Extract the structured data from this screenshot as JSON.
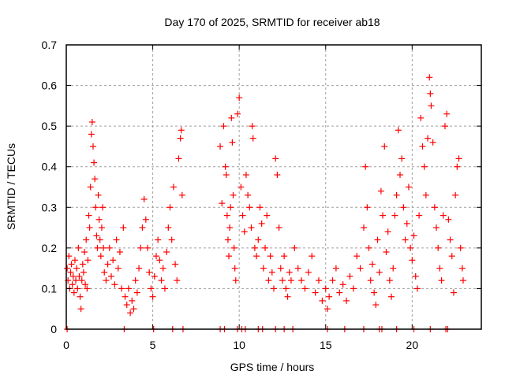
{
  "chart_data": {
    "type": "scatter",
    "title": "Day 170 of 2025, SRMTID for receiver ab18",
    "xlabel": "GPS time / hours",
    "ylabel": "SRMTID / TECUs",
    "xlim": [
      0,
      24
    ],
    "ylim": [
      0,
      0.7
    ],
    "xticks": [
      "0",
      "5",
      "10",
      "15",
      "20"
    ],
    "xtick_values": [
      0,
      5,
      10,
      15,
      20
    ],
    "yticks": [
      "0",
      "0.1",
      "0.2",
      "0.3",
      "0.4",
      "0.5",
      "0.6",
      "0.7"
    ],
    "ytick_values": [
      0,
      0.1,
      0.2,
      0.3,
      0.4,
      0.5,
      0.6,
      0.7
    ],
    "grid": true,
    "marker": "plus",
    "series": [
      {
        "name": "SRMTID",
        "color": "#ff0000",
        "points": [
          [
            0.05,
            0.15
          ],
          [
            0.1,
            0.12
          ],
          [
            0.15,
            0.18
          ],
          [
            0.2,
            0.1
          ],
          [
            0.25,
            0.14
          ],
          [
            0.3,
            0.16
          ],
          [
            0.35,
            0.11
          ],
          [
            0.4,
            0.13
          ],
          [
            0.45,
            0.09
          ],
          [
            0.5,
            0.17
          ],
          [
            0.55,
            0.12
          ],
          [
            0.6,
            0.15
          ],
          [
            0.65,
            0.1
          ],
          [
            0.7,
            0.2
          ],
          [
            0.75,
            0.13
          ],
          [
            0.8,
            0.08
          ],
          [
            0.85,
            0.05
          ],
          [
            0.9,
            0.12
          ],
          [
            0.95,
            0.16
          ],
          [
            1.0,
            0.14
          ],
          [
            1.05,
            0.19
          ],
          [
            1.1,
            0.11
          ],
          [
            1.15,
            0.22
          ],
          [
            1.2,
            0.1
          ],
          [
            1.25,
            0.17
          ],
          [
            1.3,
            0.28
          ],
          [
            1.35,
            0.25
          ],
          [
            1.4,
            0.35
          ],
          [
            1.45,
            0.48
          ],
          [
            1.5,
            0.51
          ],
          [
            1.55,
            0.45
          ],
          [
            1.6,
            0.41
          ],
          [
            1.65,
            0.37
          ],
          [
            1.7,
            0.3
          ],
          [
            1.75,
            0.23
          ],
          [
            1.8,
            0.2
          ],
          [
            1.85,
            0.33
          ],
          [
            1.9,
            0.27
          ],
          [
            1.95,
            0.22
          ],
          [
            2.0,
            0.18
          ],
          [
            2.05,
            0.25
          ],
          [
            2.1,
            0.3
          ],
          [
            2.15,
            0.2
          ],
          [
            2.2,
            0.14
          ],
          [
            2.3,
            0.12
          ],
          [
            2.4,
            0.16
          ],
          [
            2.5,
            0.2
          ],
          [
            2.6,
            0.13
          ],
          [
            2.7,
            0.17
          ],
          [
            2.8,
            0.11
          ],
          [
            2.9,
            0.22
          ],
          [
            3.0,
            0.15
          ],
          [
            3.1,
            0.19
          ],
          [
            3.2,
            0.1
          ],
          [
            3.3,
            0.25
          ],
          [
            3.4,
            0.08
          ],
          [
            3.5,
            0.06
          ],
          [
            3.6,
            0.1
          ],
          [
            3.7,
            0.04
          ],
          [
            3.8,
            0.07
          ],
          [
            3.9,
            0.05
          ],
          [
            4.0,
            0.12
          ],
          [
            4.1,
            0.09
          ],
          [
            4.2,
            0.15
          ],
          [
            4.3,
            0.2
          ],
          [
            4.4,
            0.25
          ],
          [
            4.5,
            0.32
          ],
          [
            4.6,
            0.27
          ],
          [
            4.7,
            0.2
          ],
          [
            4.8,
            0.14
          ],
          [
            4.9,
            0.1
          ],
          [
            5.0,
            0.08
          ],
          [
            5.1,
            0.13
          ],
          [
            5.2,
            0.18
          ],
          [
            5.3,
            0.22
          ],
          [
            5.4,
            0.17
          ],
          [
            5.5,
            0.12
          ],
          [
            5.6,
            0.15
          ],
          [
            5.7,
            0.1
          ],
          [
            5.8,
            0.19
          ],
          [
            5.9,
            0.25
          ],
          [
            6.0,
            0.3
          ],
          [
            6.1,
            0.22
          ],
          [
            6.2,
            0.35
          ],
          [
            6.3,
            0.16
          ],
          [
            6.4,
            0.12
          ],
          [
            6.5,
            0.42
          ],
          [
            6.6,
            0.47
          ],
          [
            6.65,
            0.49
          ],
          [
            6.7,
            0.33
          ],
          [
            8.9,
            0.45
          ],
          [
            9.0,
            0.31
          ],
          [
            9.1,
            0.5
          ],
          [
            9.2,
            0.4
          ],
          [
            9.25,
            0.38
          ],
          [
            9.3,
            0.28
          ],
          [
            9.35,
            0.22
          ],
          [
            9.4,
            0.18
          ],
          [
            9.45,
            0.25
          ],
          [
            9.5,
            0.3
          ],
          [
            9.55,
            0.52
          ],
          [
            9.6,
            0.46
          ],
          [
            9.65,
            0.33
          ],
          [
            9.7,
            0.2
          ],
          [
            9.75,
            0.15
          ],
          [
            9.8,
            0.12
          ],
          [
            9.9,
            0.53
          ],
          [
            10.0,
            0.57
          ],
          [
            10.1,
            0.35
          ],
          [
            10.2,
            0.28
          ],
          [
            10.3,
            0.24
          ],
          [
            10.4,
            0.38
          ],
          [
            10.5,
            0.33
          ],
          [
            10.6,
            0.3
          ],
          [
            10.7,
            0.25
          ],
          [
            10.75,
            0.5
          ],
          [
            10.8,
            0.47
          ],
          [
            10.9,
            0.2
          ],
          [
            11.0,
            0.18
          ],
          [
            11.1,
            0.22
          ],
          [
            11.2,
            0.3
          ],
          [
            11.3,
            0.26
          ],
          [
            11.4,
            0.15
          ],
          [
            11.5,
            0.2
          ],
          [
            11.6,
            0.28
          ],
          [
            11.7,
            0.12
          ],
          [
            11.8,
            0.18
          ],
          [
            11.9,
            0.14
          ],
          [
            12.0,
            0.1
          ],
          [
            12.1,
            0.42
          ],
          [
            12.2,
            0.38
          ],
          [
            12.3,
            0.25
          ],
          [
            12.4,
            0.15
          ],
          [
            12.5,
            0.12
          ],
          [
            12.6,
            0.18
          ],
          [
            12.7,
            0.1
          ],
          [
            12.8,
            0.08
          ],
          [
            12.9,
            0.14
          ],
          [
            13.0,
            0.12
          ],
          [
            13.2,
            0.2
          ],
          [
            13.4,
            0.15
          ],
          [
            13.6,
            0.12
          ],
          [
            13.8,
            0.1
          ],
          [
            14.0,
            0.14
          ],
          [
            14.2,
            0.18
          ],
          [
            14.4,
            0.09
          ],
          [
            14.6,
            0.12
          ],
          [
            14.8,
            0.07
          ],
          [
            15.0,
            0.1
          ],
          [
            15.1,
            0.05
          ],
          [
            15.2,
            0.08
          ],
          [
            15.4,
            0.12
          ],
          [
            15.6,
            0.15
          ],
          [
            15.8,
            0.09
          ],
          [
            16.0,
            0.11
          ],
          [
            16.2,
            0.07
          ],
          [
            16.4,
            0.13
          ],
          [
            16.6,
            0.1
          ],
          [
            16.8,
            0.18
          ],
          [
            17.0,
            0.15
          ],
          [
            17.2,
            0.25
          ],
          [
            17.3,
            0.4
          ],
          [
            17.4,
            0.3
          ],
          [
            17.5,
            0.2
          ],
          [
            17.6,
            0.12
          ],
          [
            17.7,
            0.16
          ],
          [
            17.8,
            0.09
          ],
          [
            17.9,
            0.06
          ],
          [
            18.0,
            0.22
          ],
          [
            18.1,
            0.14
          ],
          [
            18.2,
            0.34
          ],
          [
            18.3,
            0.28
          ],
          [
            18.4,
            0.45
          ],
          [
            18.5,
            0.19
          ],
          [
            18.6,
            0.24
          ],
          [
            18.7,
            0.12
          ],
          [
            18.8,
            0.08
          ],
          [
            18.9,
            0.15
          ],
          [
            19.0,
            0.28
          ],
          [
            19.1,
            0.33
          ],
          [
            19.2,
            0.49
          ],
          [
            19.3,
            0.38
          ],
          [
            19.4,
            0.42
          ],
          [
            19.5,
            0.3
          ],
          [
            19.6,
            0.22
          ],
          [
            19.7,
            0.26
          ],
          [
            19.8,
            0.35
          ],
          [
            19.9,
            0.2
          ],
          [
            20.0,
            0.17
          ],
          [
            20.1,
            0.23
          ],
          [
            20.2,
            0.13
          ],
          [
            20.3,
            0.1
          ],
          [
            20.4,
            0.28
          ],
          [
            20.5,
            0.52
          ],
          [
            20.6,
            0.45
          ],
          [
            20.7,
            0.4
          ],
          [
            20.8,
            0.33
          ],
          [
            20.9,
            0.47
          ],
          [
            21.0,
            0.62
          ],
          [
            21.05,
            0.58
          ],
          [
            21.1,
            0.55
          ],
          [
            21.2,
            0.46
          ],
          [
            21.3,
            0.3
          ],
          [
            21.4,
            0.25
          ],
          [
            21.5,
            0.2
          ],
          [
            21.6,
            0.15
          ],
          [
            21.7,
            0.12
          ],
          [
            21.8,
            0.28
          ],
          [
            21.9,
            0.5
          ],
          [
            22.0,
            0.53
          ],
          [
            22.1,
            0.27
          ],
          [
            22.2,
            0.22
          ],
          [
            22.3,
            0.18
          ],
          [
            22.4,
            0.09
          ],
          [
            22.5,
            0.33
          ],
          [
            22.6,
            0.4
          ],
          [
            22.7,
            0.42
          ],
          [
            22.8,
            0.2
          ],
          [
            22.9,
            0.15
          ],
          [
            22.95,
            0.12
          ],
          [
            0.05,
            0
          ],
          [
            3.35,
            0
          ],
          [
            5.05,
            0
          ],
          [
            6.15,
            0
          ],
          [
            6.75,
            0
          ],
          [
            8.9,
            0
          ],
          [
            9.15,
            0
          ],
          [
            9.9,
            0
          ],
          [
            10.15,
            0
          ],
          [
            10.35,
            0
          ],
          [
            11.1,
            0
          ],
          [
            11.35,
            0
          ],
          [
            12.1,
            0
          ],
          [
            12.6,
            0
          ],
          [
            13.1,
            0
          ],
          [
            15.1,
            0
          ],
          [
            16.1,
            0
          ],
          [
            17.2,
            0
          ],
          [
            18.1,
            0
          ],
          [
            18.25,
            0
          ],
          [
            19.1,
            0
          ],
          [
            20.1,
            0
          ],
          [
            21.05,
            0
          ],
          [
            21.95,
            0
          ],
          [
            22.05,
            0
          ]
        ]
      }
    ]
  }
}
